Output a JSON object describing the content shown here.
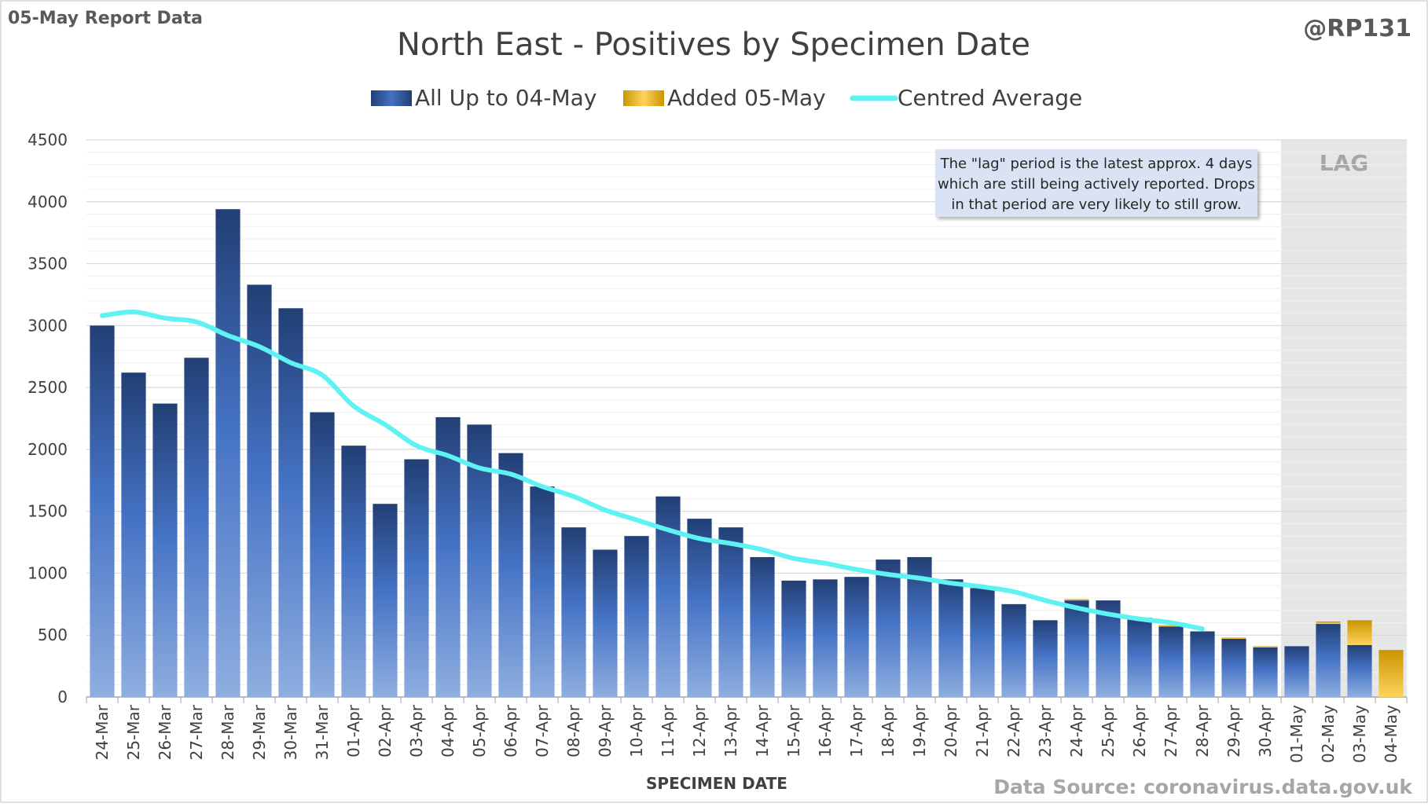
{
  "header": {
    "report_label": "05-May Report Data",
    "handle": "@RP131",
    "source": "Data Source: coronavirus.data.gov.uk"
  },
  "annotation": {
    "lag_label": "LAG",
    "note_lines": [
      "The \"lag\" period is the latest approx. 4 days",
      "which are still being actively reported.  Drops",
      "in that period are very likely to still grow."
    ]
  },
  "colors": {
    "bar_dark": "#223f75",
    "bar_mid": "#4472c4",
    "bar_light": "#8faee0",
    "added_dark": "#c99500",
    "added_light": "#ffd35c",
    "average": "#5ef2f2",
    "lag_band": "#e6e6e6",
    "note_bg": "#dae3f3",
    "grid": "#d9d9d9",
    "text": "#404040"
  },
  "chart_data": {
    "type": "bar",
    "stacked": true,
    "title": "North East - Positives by Specimen Date",
    "xlabel": "SPECIMEN DATE",
    "ylabel": "",
    "ylim": [
      0,
      4500
    ],
    "yticks": [
      0,
      500,
      1000,
      1500,
      2000,
      2500,
      3000,
      3500,
      4000,
      4500
    ],
    "grid": true,
    "legend_position": "top",
    "categories": [
      "24-Mar",
      "25-Mar",
      "26-Mar",
      "27-Mar",
      "28-Mar",
      "29-Mar",
      "30-Mar",
      "31-Mar",
      "01-Apr",
      "02-Apr",
      "03-Apr",
      "04-Apr",
      "05-Apr",
      "06-Apr",
      "07-Apr",
      "08-Apr",
      "09-Apr",
      "10-Apr",
      "11-Apr",
      "12-Apr",
      "13-Apr",
      "14-Apr",
      "15-Apr",
      "16-Apr",
      "17-Apr",
      "18-Apr",
      "19-Apr",
      "20-Apr",
      "21-Apr",
      "22-Apr",
      "23-Apr",
      "24-Apr",
      "25-Apr",
      "26-Apr",
      "27-Apr",
      "28-Apr",
      "29-Apr",
      "30-Apr",
      "01-May",
      "02-May",
      "03-May",
      "04-May"
    ],
    "series": [
      {
        "name": "All Up to 04-May",
        "kind": "bar",
        "values": [
          3000,
          2620,
          2370,
          2740,
          3940,
          3330,
          3140,
          2300,
          2030,
          1560,
          1920,
          2260,
          2200,
          1970,
          1700,
          1370,
          1190,
          1300,
          1620,
          1440,
          1370,
          1130,
          940,
          950,
          970,
          1110,
          1130,
          950,
          880,
          750,
          620,
          780,
          780,
          640,
          570,
          530,
          470,
          400,
          410,
          590,
          420,
          0
        ]
      },
      {
        "name": "Added 05-May",
        "kind": "bar",
        "values": [
          0,
          0,
          0,
          0,
          0,
          0,
          0,
          0,
          0,
          0,
          0,
          0,
          0,
          0,
          0,
          0,
          0,
          0,
          0,
          0,
          0,
          0,
          0,
          0,
          0,
          0,
          0,
          0,
          0,
          0,
          0,
          10,
          0,
          0,
          10,
          0,
          10,
          10,
          0,
          20,
          200,
          380
        ]
      },
      {
        "name": "Centred Average",
        "kind": "line",
        "values": [
          3080,
          3110,
          3060,
          3030,
          2920,
          2830,
          2700,
          2600,
          2350,
          2200,
          2030,
          1950,
          1850,
          1800,
          1700,
          1620,
          1510,
          1430,
          1350,
          1280,
          1240,
          1190,
          1120,
          1080,
          1030,
          990,
          960,
          920,
          890,
          850,
          780,
          720,
          670,
          630,
          600,
          550,
          null,
          null,
          null,
          null,
          null,
          null
        ]
      }
    ],
    "lag_categories": [
      "01-May",
      "02-May",
      "03-May",
      "04-May"
    ]
  }
}
